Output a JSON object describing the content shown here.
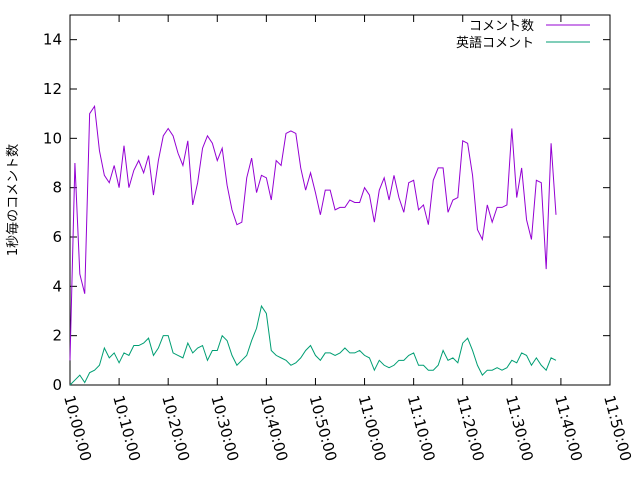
{
  "chart_data": {
    "type": "line",
    "title": "",
    "xlabel": "",
    "ylabel": "1秒毎のコメント数",
    "ylim": [
      0,
      15
    ],
    "yticks": [
      0,
      2,
      4,
      6,
      8,
      10,
      12,
      14
    ],
    "xlim": [
      "10:00:00",
      "11:50:00"
    ],
    "xticks": [
      "10:00:00",
      "10:10:00",
      "10:20:00",
      "10:30:00",
      "10:40:00",
      "10:50:00",
      "11:00:00",
      "11:10:00",
      "11:20:00",
      "11:30:00",
      "11:40:00",
      "11:50:00"
    ],
    "grid": false,
    "legend_position": "top-right",
    "x_step": "00:01:00",
    "x_start": "10:00:00",
    "series": [
      {
        "name": "コメント数",
        "color": "#9400d3",
        "values": [
          1.0,
          9.0,
          4.5,
          3.7,
          11.0,
          11.3,
          9.5,
          8.5,
          8.2,
          8.9,
          8.0,
          9.7,
          8.0,
          8.7,
          9.1,
          8.6,
          9.3,
          7.7,
          9.1,
          10.1,
          10.4,
          10.1,
          9.4,
          8.9,
          9.9,
          7.3,
          8.2,
          9.6,
          10.1,
          9.8,
          9.1,
          9.6,
          8.1,
          7.1,
          6.5,
          6.6,
          8.4,
          9.2,
          7.8,
          8.5,
          8.4,
          7.5,
          9.1,
          8.9,
          10.2,
          10.3,
          10.2,
          8.8,
          7.9,
          8.6,
          7.8,
          6.9,
          7.9,
          7.9,
          7.1,
          7.2,
          7.2,
          7.5,
          7.4,
          7.4,
          8.0,
          7.7,
          6.6,
          7.9,
          8.4,
          7.5,
          8.5,
          7.6,
          7.0,
          8.2,
          8.3,
          7.1,
          7.3,
          6.5,
          8.3,
          8.8,
          8.8,
          7.0,
          7.5,
          7.6,
          9.9,
          9.8,
          8.5,
          6.3,
          5.9,
          7.3,
          6.6,
          7.2,
          7.2,
          7.3,
          10.4,
          7.6,
          8.8,
          6.7,
          5.9,
          8.3,
          8.2,
          4.7,
          9.8,
          6.9
        ]
      },
      {
        "name": "英語コメント",
        "color": "#009e73",
        "values": [
          0.0,
          0.2,
          0.4,
          0.1,
          0.5,
          0.6,
          0.8,
          1.5,
          1.1,
          1.3,
          0.9,
          1.3,
          1.2,
          1.6,
          1.6,
          1.7,
          1.9,
          1.2,
          1.5,
          2.0,
          2.0,
          1.3,
          1.2,
          1.1,
          1.7,
          1.3,
          1.5,
          1.6,
          1.0,
          1.4,
          1.4,
          2.0,
          1.8,
          1.2,
          0.8,
          1.0,
          1.2,
          1.8,
          2.3,
          3.2,
          2.9,
          1.4,
          1.2,
          1.1,
          1.0,
          0.8,
          0.9,
          1.1,
          1.4,
          1.6,
          1.2,
          1.0,
          1.3,
          1.3,
          1.2,
          1.3,
          1.5,
          1.3,
          1.3,
          1.4,
          1.2,
          1.1,
          0.6,
          1.0,
          0.8,
          0.7,
          0.8,
          1.0,
          1.0,
          1.2,
          1.3,
          0.8,
          0.8,
          0.6,
          0.6,
          0.8,
          1.4,
          1.0,
          1.1,
          0.9,
          1.7,
          1.9,
          1.4,
          0.8,
          0.4,
          0.6,
          0.6,
          0.7,
          0.6,
          0.7,
          1.0,
          0.9,
          1.3,
          1.2,
          0.8,
          1.1,
          0.8,
          0.6,
          1.1,
          1.0
        ]
      }
    ]
  }
}
